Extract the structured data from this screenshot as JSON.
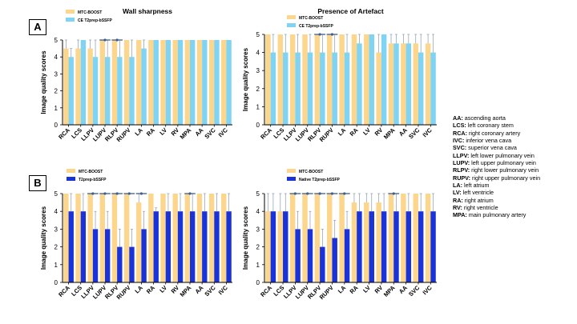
{
  "panels": [
    {
      "id": "A",
      "label": "A"
    },
    {
      "id": "B",
      "label": "B"
    }
  ],
  "abbreviations": [
    {
      "key": "AA:",
      "value": "ascending aorta"
    },
    {
      "key": "LCS:",
      "value": "left coronary stem"
    },
    {
      "key": "RCA:",
      "value": "right coronary artery"
    },
    {
      "key": "IVC:",
      "value": "inferior vena cava"
    },
    {
      "key": "SVC:",
      "value": "superior vena cava"
    },
    {
      "key": "LLPV:",
      "value": "left lower pulmonary vein"
    },
    {
      "key": "LUPV:",
      "value": "left upper pulmonary vein"
    },
    {
      "key": "RLPV:",
      "value": "right lower pulmonary vein"
    },
    {
      "key": "RUPV:",
      "value": "right upper pulmonary vein"
    },
    {
      "key": "LA:",
      "value": "left atrium"
    },
    {
      "key": "LV:",
      "value": "left ventricle"
    },
    {
      "key": "RA:",
      "value": "right atrium"
    },
    {
      "key": "RV:",
      "value": "right ventricle"
    },
    {
      "key": "MPA:",
      "value": "main pulmonary artery"
    }
  ],
  "colors": {
    "mtc": "#fcd68c",
    "ce": "#7fd3f3",
    "t2": "#1a33d9",
    "axis": "#000000",
    "error": "#8a9ab0",
    "sig": "#3f5f8f"
  },
  "chart_data": [
    {
      "type": "bar",
      "title": "Wall sharpness",
      "ylabel": "Image quality scores",
      "ylim": [
        0,
        5
      ],
      "yticks": [
        0,
        1,
        2,
        3,
        4,
        5
      ],
      "categories": [
        "RCA",
        "LCS",
        "LLPV",
        "LUPV",
        "RLPV",
        "RUPV",
        "LA",
        "RA",
        "LV",
        "RV",
        "MPA",
        "AA",
        "SVC",
        "IVC"
      ],
      "series": [
        {
          "name": "MTC-BOOST",
          "color": "mtc",
          "values": [
            4.5,
            4.5,
            4.5,
            5,
            5,
            5,
            5,
            5,
            5,
            5,
            5,
            5,
            5,
            5
          ],
          "err": [
            0.5,
            0.5,
            0.5,
            0,
            0,
            0,
            0,
            0,
            0,
            0,
            0,
            0,
            0,
            0
          ]
        },
        {
          "name": "CE T2prep-bSSFP",
          "color": "ce",
          "values": [
            4,
            5,
            4,
            4,
            4,
            4,
            4.5,
            5,
            5,
            5,
            5,
            5,
            5,
            5
          ],
          "err": [
            0.5,
            0,
            1,
            1,
            1,
            1,
            0.5,
            0,
            0,
            0,
            0,
            0,
            0,
            0
          ]
        }
      ],
      "significance": [
        "LUPV",
        "RLPV"
      ]
    },
    {
      "type": "bar",
      "title": "Presence of Artefact",
      "ylabel": "Image quality scores",
      "ylim": [
        0,
        5
      ],
      "yticks": [
        0,
        1,
        2,
        3,
        4,
        5
      ],
      "categories": [
        "RCA",
        "LCS",
        "LLPV",
        "LUPV",
        "RLPV",
        "RUPV",
        "LA",
        "RA",
        "LV",
        "RV",
        "MPA",
        "AA",
        "SVC",
        "IVC"
      ],
      "series": [
        {
          "name": "MTC-BOOST",
          "color": "mtc",
          "values": [
            5,
            5,
            5,
            5,
            5,
            5,
            5,
            5,
            5,
            4,
            4.5,
            4.5,
            4.5,
            4.5
          ],
          "err": [
            0,
            0,
            0,
            0,
            0,
            0,
            0,
            0,
            0,
            1,
            0.5,
            0.5,
            0.5,
            0.5
          ]
        },
        {
          "name": "CE T2prep-bSSFP",
          "color": "ce",
          "values": [
            4,
            4,
            4,
            4,
            4,
            4,
            4,
            4.5,
            5,
            5,
            4.5,
            4.5,
            4,
            4
          ],
          "err": [
            1,
            1,
            1,
            1,
            1,
            1,
            1,
            0.5,
            0,
            0,
            0.5,
            0.5,
            1,
            1
          ]
        }
      ],
      "significance": [
        "RLPV",
        "RUPV"
      ]
    },
    {
      "type": "bar",
      "title": "",
      "ylabel": "Image quality scores",
      "ylim": [
        0,
        5
      ],
      "yticks": [
        0,
        1,
        2,
        3,
        4,
        5
      ],
      "categories": [
        "RCA",
        "LCS",
        "LLPV",
        "LUPV",
        "RLPV",
        "RUPV",
        "LA",
        "RA",
        "LV",
        "RV",
        "MPA",
        "AA",
        "SVC",
        "IVC"
      ],
      "series": [
        {
          "name": "MTC-BOOST",
          "color": "mtc",
          "values": [
            5,
            5,
            5,
            5,
            5,
            5,
            4.5,
            5,
            5,
            5,
            5,
            5,
            5,
            5
          ],
          "err": [
            0,
            0,
            0,
            0,
            0,
            0,
            0.5,
            0,
            0,
            0,
            0,
            0,
            0,
            0
          ]
        },
        {
          "name": "T2prep-bSSFP",
          "color": "t2",
          "values": [
            4,
            4,
            3,
            3,
            2,
            2,
            3,
            4,
            4,
            4,
            4,
            4,
            4,
            4
          ],
          "err": [
            1,
            1,
            1,
            1,
            1,
            1,
            1,
            0.2,
            1,
            1,
            1,
            1,
            1,
            1
          ]
        }
      ],
      "significance": [
        "LLPV",
        "LUPV",
        "RLPV",
        "RUPV",
        "LA",
        "MPA"
      ]
    },
    {
      "type": "bar",
      "title": "",
      "ylabel": "Image quality scores",
      "ylim": [
        0,
        5
      ],
      "yticks": [
        0,
        1,
        2,
        3,
        4,
        5
      ],
      "categories": [
        "RCA",
        "LCS",
        "LLPV",
        "LUPV",
        "RLPV",
        "RUPV",
        "LA",
        "RA",
        "LV",
        "RV",
        "MPA",
        "AA",
        "SVC",
        "IVC"
      ],
      "series": [
        {
          "name": "MTC-BOOST",
          "color": "mtc",
          "values": [
            4,
            4,
            5,
            5,
            5,
            5,
            5,
            4.5,
            4.5,
            4.5,
            5,
            5,
            5,
            5
          ],
          "err": [
            1,
            1,
            0,
            0,
            0,
            0,
            0,
            0.5,
            0.5,
            0.5,
            0,
            0,
            0,
            0
          ]
        },
        {
          "name": "Native T2prep-bSSFP",
          "color": "t2",
          "values": [
            4,
            4,
            3,
            3,
            2,
            2.5,
            3,
            4,
            4,
            4,
            4,
            4,
            4,
            4
          ],
          "err": [
            1,
            1,
            1,
            1,
            1,
            1,
            1,
            1,
            1,
            1,
            1,
            1,
            1,
            1
          ]
        }
      ],
      "significance": [
        "LLPV",
        "LUPV",
        "RLPV",
        "RUPV",
        "LA",
        "MPA"
      ]
    }
  ]
}
